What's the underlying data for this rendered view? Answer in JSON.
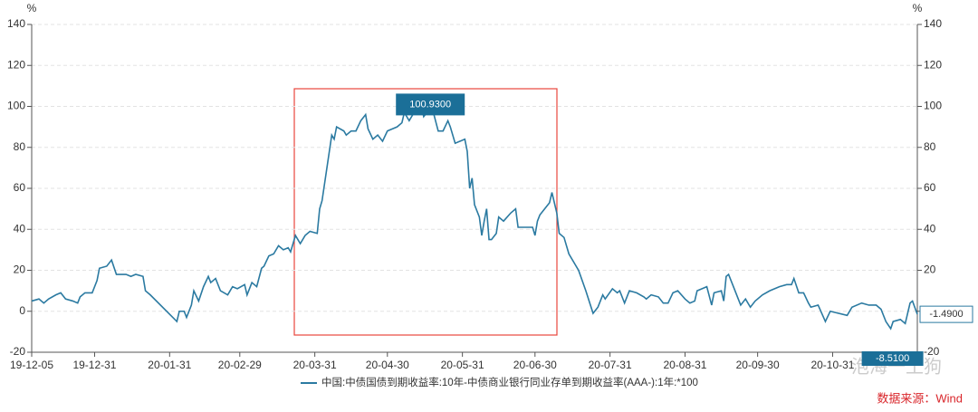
{
  "chart_data": {
    "type": "line",
    "y_unit": "%",
    "y2_unit": "%",
    "xlim": [
      "19-12-05",
      "20-12-05"
    ],
    "xticks": [
      "19-12-05",
      "19-12-31",
      "20-01-31",
      "20-02-29",
      "20-03-31",
      "20-04-30",
      "20-05-31",
      "20-06-30",
      "20-07-31",
      "20-08-31",
      "20-09-30",
      "20-10-31"
    ],
    "ylim": [
      -20,
      140
    ],
    "yticks": [
      -20,
      0,
      20,
      40,
      60,
      80,
      100,
      120,
      140
    ],
    "y2lim": [
      -20,
      140
    ],
    "y2ticks": [
      -20,
      0,
      20,
      40,
      60,
      80,
      100,
      120,
      140
    ],
    "grid": true,
    "x": [
      "19-12-05",
      "19-12-08",
      "19-12-10",
      "19-12-12",
      "19-12-15",
      "19-12-17",
      "19-12-19",
      "19-12-22",
      "19-12-24",
      "19-12-25",
      "19-12-27",
      "19-12-30",
      "20-01-01",
      "20-01-02",
      "20-01-05",
      "20-01-07",
      "20-01-09",
      "20-01-13",
      "20-01-15",
      "20-01-17",
      "20-01-20",
      "20-01-21",
      "20-01-23",
      "20-02-03",
      "20-02-04",
      "20-02-06",
      "20-02-07",
      "20-02-09",
      "20-02-10",
      "20-02-12",
      "20-02-14",
      "20-02-16",
      "20-02-17",
      "20-02-19",
      "20-02-21",
      "20-02-24",
      "20-02-26",
      "20-02-28",
      "20-03-02",
      "20-03-03",
      "20-03-05",
      "20-03-07",
      "20-03-09",
      "20-03-10",
      "20-03-12",
      "20-03-14",
      "20-03-16",
      "20-03-18",
      "20-03-20",
      "20-03-21",
      "20-03-23",
      "20-03-25",
      "20-03-27",
      "20-03-29",
      "20-04-01",
      "20-04-02",
      "20-04-03",
      "20-04-05",
      "20-04-07",
      "20-04-08",
      "20-04-09",
      "20-04-12",
      "20-04-13",
      "20-04-15",
      "20-04-17",
      "20-04-19",
      "20-04-21",
      "20-04-22",
      "20-04-24",
      "20-04-26",
      "20-04-28",
      "20-04-30",
      "20-05-04",
      "20-05-06",
      "20-05-07",
      "20-05-09",
      "20-05-12",
      "20-05-14",
      "20-05-15",
      "20-05-17",
      "20-05-19",
      "20-05-21",
      "20-05-23",
      "20-05-25",
      "20-05-26",
      "20-05-28",
      "20-06-01",
      "20-06-02",
      "20-06-03",
      "20-06-04",
      "20-06-05",
      "20-06-07",
      "20-06-08",
      "20-06-09",
      "20-06-10",
      "20-06-11",
      "20-06-12",
      "20-06-14",
      "20-06-15",
      "20-06-17",
      "20-06-20",
      "20-06-22",
      "20-06-23",
      "20-06-29",
      "20-06-30",
      "20-07-01",
      "20-07-02",
      "20-07-04",
      "20-07-06",
      "20-07-07",
      "20-07-09",
      "20-07-10",
      "20-07-12",
      "20-07-14",
      "20-07-18",
      "20-07-21",
      "20-07-24",
      "20-07-26",
      "20-07-28",
      "20-07-29",
      "20-08-01",
      "20-08-03",
      "20-08-04",
      "20-08-06",
      "20-08-08",
      "20-08-11",
      "20-08-14",
      "20-08-15",
      "20-08-17",
      "20-08-20",
      "20-08-22",
      "20-08-24",
      "20-08-26",
      "20-08-28",
      "20-08-31",
      "20-09-02",
      "20-09-04",
      "20-09-05",
      "20-09-07",
      "20-09-09",
      "20-09-11",
      "20-09-12",
      "20-09-15",
      "20-09-16",
      "20-09-17",
      "20-09-18",
      "20-09-20",
      "20-09-22",
      "20-09-23",
      "20-09-25",
      "20-09-27",
      "20-09-29",
      "20-10-02",
      "20-10-05",
      "20-10-09",
      "20-10-12",
      "20-10-14",
      "20-10-15",
      "20-10-17",
      "20-10-19",
      "20-10-21",
      "20-10-22",
      "20-10-25",
      "20-10-28",
      "20-10-30",
      "20-11-06",
      "20-11-08",
      "20-11-12",
      "20-11-15",
      "20-11-18",
      "20-11-20",
      "20-11-22",
      "20-11-24",
      "20-11-25",
      "20-11-28",
      "20-11-30",
      "20-12-02",
      "20-12-03",
      "20-12-05"
    ],
    "series": [
      {
        "name": "中国:中债国债到期收益率:10年-中债商业银行同业存单到期收益率(AAA-):1年:*100",
        "color": "#2b7aa1",
        "values": [
          5,
          6,
          4,
          6,
          8,
          9,
          6,
          5,
          4,
          7,
          9,
          9,
          15,
          21,
          22,
          25,
          18,
          18,
          17,
          18,
          17,
          10,
          8,
          -5,
          0,
          0,
          -3,
          3,
          10,
          5,
          12,
          17,
          14,
          16,
          10,
          8,
          12,
          11,
          13,
          8,
          14,
          12,
          21,
          22,
          27,
          28,
          32,
          30,
          31,
          29,
          37,
          33,
          37,
          39,
          38,
          50,
          54,
          70,
          86,
          84,
          90,
          88,
          86,
          88,
          88,
          93,
          96,
          89,
          84,
          86,
          83,
          88,
          90,
          92,
          97,
          93,
          99,
          100.93,
          95,
          98,
          97,
          88,
          88,
          93,
          90,
          82,
          84,
          78,
          60,
          65,
          52,
          46,
          37,
          44,
          50,
          35,
          35,
          38,
          46,
          44,
          48,
          50,
          41,
          41,
          37,
          44,
          47,
          50,
          53,
          58,
          48,
          38,
          36,
          28,
          20,
          10,
          -1,
          2,
          8,
          6,
          11,
          9,
          10,
          4,
          10,
          9,
          7,
          6,
          8,
          7,
          4,
          4,
          9,
          10,
          6,
          4,
          5,
          10,
          11,
          12,
          3,
          9,
          10,
          5,
          17,
          18,
          12,
          6,
          3,
          6,
          2,
          5,
          8,
          10,
          12,
          13,
          13,
          16,
          9,
          9,
          4,
          2,
          3,
          -5,
          0,
          -2,
          2,
          4,
          3,
          3,
          1,
          -5,
          -8.51,
          -5,
          -4,
          -6,
          4,
          5,
          -1.49
        ]
      }
    ],
    "annotations": [
      {
        "x": "20-05-14",
        "value": 100.93,
        "label": "100.9300"
      },
      {
        "x": "20-11-24",
        "value": -8.51,
        "label": "-8.5100"
      },
      {
        "x": "20-12-05",
        "value": -1.49,
        "label": "-1.4900"
      }
    ],
    "source": "数据来源：Wind",
    "watermark": "泡海一土狗"
  }
}
